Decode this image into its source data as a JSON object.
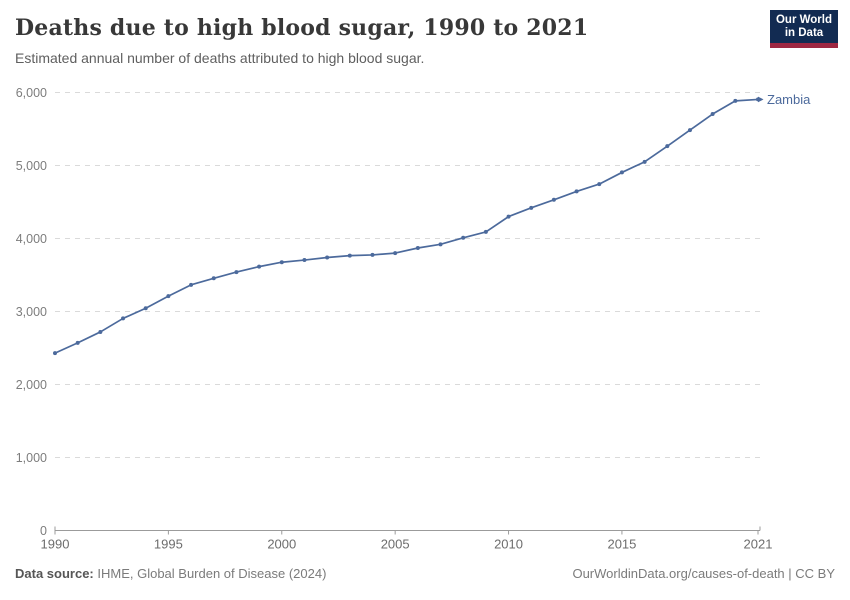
{
  "header": {
    "title": "Deaths due to high blood sugar, 1990 to 2021",
    "subtitle": "Estimated annual number of deaths attributed to high blood sugar.",
    "logo": {
      "line1": "Our World",
      "line2": "in Data",
      "bg_color": "#122B52",
      "stripe_color": "#9E2742"
    }
  },
  "chart_data": {
    "type": "line",
    "title": "Deaths due to high blood sugar, 1990 to 2021",
    "subtitle": "Estimated annual number of deaths attributed to high blood sugar.",
    "xlabel": "",
    "ylabel": "",
    "xlim": [
      1990,
      2021
    ],
    "ylim": [
      0,
      6000
    ],
    "xticks": [
      1990,
      1995,
      2000,
      2005,
      2010,
      2015,
      2021
    ],
    "yticks": [
      0,
      1000,
      2000,
      3000,
      4000,
      5000,
      6000
    ],
    "grid": "horizontal-dashed",
    "grid_color": "#dadada",
    "axis_color": "#9b9b9b",
    "tick_label_color_y": "#7d7d7d",
    "tick_label_color_x": "#6d6d6d",
    "legend_position": "end-of-line-label",
    "end_label": "Zambia",
    "series": [
      {
        "name": "Zambia",
        "color": "#4C6A9C",
        "x": [
          1990,
          1991,
          1992,
          1993,
          1994,
          1995,
          1996,
          1997,
          1998,
          1999,
          2000,
          2001,
          2002,
          2003,
          2004,
          2005,
          2006,
          2007,
          2008,
          2009,
          2010,
          2011,
          2012,
          2013,
          2014,
          2015,
          2016,
          2017,
          2018,
          2019,
          2020,
          2021
        ],
        "values": [
          2430,
          2570,
          2720,
          2905,
          3045,
          3210,
          3365,
          3455,
          3540,
          3615,
          3675,
          3705,
          3740,
          3765,
          3775,
          3800,
          3870,
          3920,
          4010,
          4090,
          4300,
          4420,
          4530,
          4645,
          4745,
          4905,
          5050,
          5265,
          5485,
          5705,
          5885,
          5905
        ]
      }
    ]
  },
  "footer": {
    "source_label": "Data source:",
    "source_text": " IHME, Global Burden of Disease (2024)",
    "link_text": "OurWorldinData.org/causes-of-death | CC BY"
  }
}
